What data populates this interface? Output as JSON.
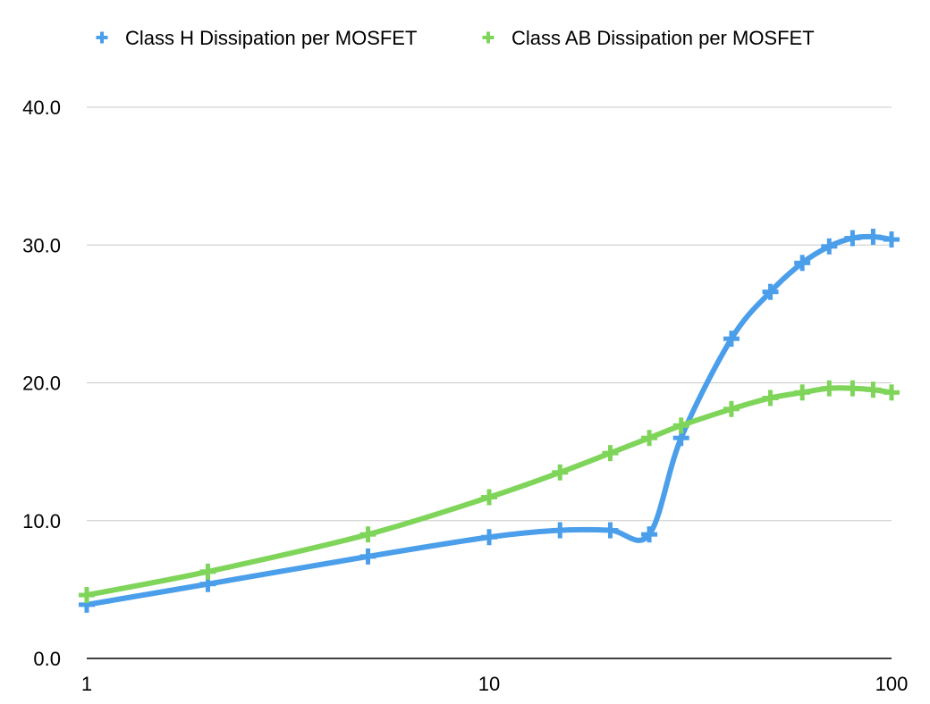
{
  "chart_data": {
    "type": "line",
    "title": "",
    "xlabel": "",
    "ylabel": "",
    "x_scale": "log",
    "xlim": [
      1,
      100
    ],
    "ylim": [
      0,
      40
    ],
    "x_ticks": [
      "1",
      "10",
      "100"
    ],
    "y_ticks": [
      "0.0",
      "10.0",
      "20.0",
      "30.0",
      "40.0"
    ],
    "grid": true,
    "legend": "top",
    "series": [
      {
        "name": "Class H Dissipation per MOSFET",
        "color": "#4a9eea",
        "x": [
          1,
          2,
          5,
          10,
          15,
          20,
          25,
          30,
          40,
          50,
          60,
          70,
          80,
          90,
          100
        ],
        "y": [
          3.9,
          5.4,
          7.4,
          8.8,
          9.3,
          9.3,
          9.0,
          16.0,
          23.2,
          26.6,
          28.7,
          29.9,
          30.5,
          30.6,
          30.4
        ]
      },
      {
        "name": "Class AB Dissipation per MOSFET",
        "color": "#7fd55a",
        "x": [
          1,
          2,
          5,
          10,
          15,
          20,
          25,
          30,
          40,
          50,
          60,
          70,
          80,
          90,
          100
        ],
        "y": [
          4.6,
          6.3,
          9.0,
          11.7,
          13.5,
          14.9,
          16.0,
          16.9,
          18.1,
          18.9,
          19.3,
          19.6,
          19.6,
          19.5,
          19.3
        ]
      }
    ]
  }
}
